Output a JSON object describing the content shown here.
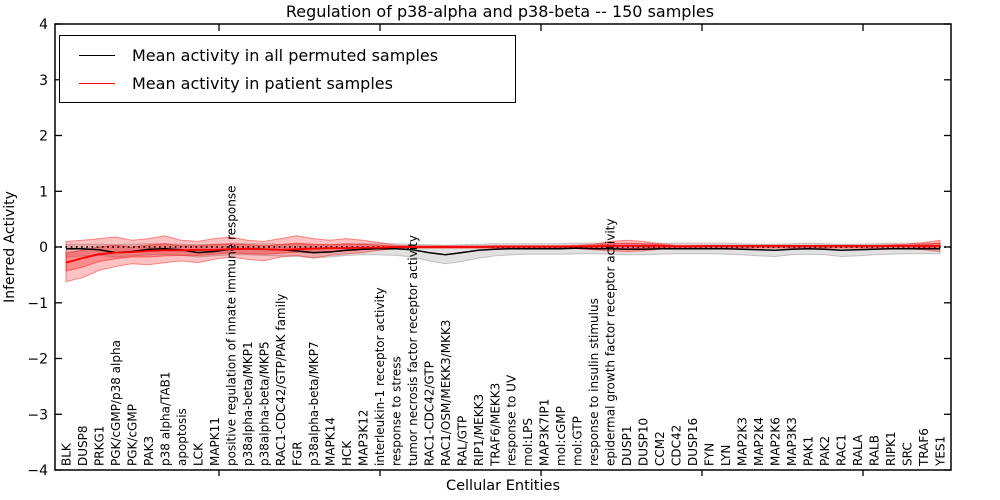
{
  "title": "Regulation of p38-alpha and p38-beta -- 150 samples",
  "axes": {
    "xlabel": "Cellular Entities",
    "ylabel": "Inferred Activity"
  },
  "legend": {
    "items": [
      {
        "label": "Mean activity in all permuted samples",
        "color": "#000000"
      },
      {
        "label": "Mean activity in patient samples",
        "color": "#ff0000"
      }
    ]
  },
  "chart_data": {
    "type": "line",
    "title": "Regulation of p38-alpha and p38-beta -- 150 samples",
    "xlabel": "Cellular Entities",
    "ylabel": "Inferred Activity",
    "ylim": [
      -4,
      4
    ],
    "yticks": [
      4,
      3,
      2,
      1,
      0,
      -1,
      -2,
      -3,
      -4
    ],
    "grid": false,
    "legend_position": "upper left",
    "zero_reference_line": 0,
    "categories": [
      "BLK",
      "DUSP8",
      "PRKG1",
      "PGK/cGMP/p38 alpha",
      "PGK/cGMP",
      "PAK3",
      "p38 alpha/TAB1",
      "apoptosis",
      "LCK",
      "MAPK11",
      "positive regulation of innate immune response",
      "p38alpha-beta/MKP1",
      "p38alpha-beta/MKP5",
      "RAC1-CDC42/GTP/PAK family",
      "FGR",
      "p38alpha-beta/MKP7",
      "MAPK14",
      "HCK",
      "MAP3K12",
      "interleukin-1 receptor activity",
      "response to stress",
      "tumor necrosis factor receptor activity",
      "RAC1-CDC42/GTP",
      "RAC1/OSM/MEKK3/MKK3",
      "RAL/GTP",
      "RIP1/MEKK3",
      "TRAF6/MEKK3",
      "response to UV",
      "mol:LPS",
      "MAP3K7IP1",
      "mol:cGMP",
      "mol:GTP",
      "response to insulin stimulus",
      "epidermal growth factor receptor activity",
      "DUSP1",
      "DUSP10",
      "CCM2",
      "CDC42",
      "DUSP16",
      "FYN",
      "LYN",
      "MAP2K3",
      "MAP2K4",
      "MAP2K6",
      "MAP3K3",
      "PAK1",
      "PAK2",
      "RAC1",
      "RALA",
      "RALB",
      "RIPK1",
      "SRC",
      "TRAF6",
      "YES1"
    ],
    "series": [
      {
        "name": "Mean activity in all permuted samples",
        "color": "#000000",
        "values": [
          -0.03,
          -0.03,
          -0.05,
          -0.1,
          -0.08,
          -0.04,
          -0.03,
          -0.05,
          -0.1,
          -0.08,
          -0.04,
          -0.03,
          -0.04,
          -0.05,
          -0.07,
          -0.1,
          -0.09,
          -0.06,
          -0.04,
          -0.03,
          -0.03,
          -0.05,
          -0.1,
          -0.14,
          -0.1,
          -0.06,
          -0.04,
          -0.03,
          -0.03,
          -0.03,
          -0.03,
          -0.02,
          -0.03,
          -0.03,
          -0.04,
          -0.04,
          -0.03,
          -0.03,
          -0.03,
          -0.03,
          -0.03,
          -0.04,
          -0.05,
          -0.06,
          -0.04,
          -0.03,
          -0.04,
          -0.06,
          -0.05,
          -0.04,
          -0.03,
          -0.03,
          -0.03,
          -0.03
        ]
      },
      {
        "name": "Mean activity in patient samples",
        "color": "#ff0000",
        "values": [
          -0.28,
          -0.2,
          -0.13,
          -0.1,
          -0.09,
          -0.07,
          -0.06,
          -0.06,
          -0.05,
          -0.05,
          -0.04,
          -0.03,
          -0.04,
          -0.05,
          -0.04,
          -0.03,
          -0.02,
          -0.02,
          -0.01,
          -0.01,
          0,
          0,
          0,
          0,
          0,
          0,
          0.01,
          0.01,
          0.01,
          0.01,
          0.01,
          0.01,
          0.01,
          0.02,
          0.02,
          0.02,
          0.02,
          0.01,
          0.01,
          0.02,
          0.02,
          0.02,
          0.02,
          0.02,
          0.02,
          0.02,
          0.02,
          0.02,
          0.02,
          0.02,
          0.02,
          0.02,
          0.02,
          0.02
        ]
      }
    ],
    "bands": [
      {
        "name": "permuted-samples-range",
        "color": "#787878",
        "opacity": 0.22,
        "upper": [
          0.05,
          0.05,
          0.05,
          0.04,
          0.05,
          0.06,
          0.06,
          0.05,
          0.04,
          0.05,
          0.06,
          0.06,
          0.06,
          0.05,
          0.05,
          0.04,
          0.04,
          0.05,
          0.06,
          0.06,
          0.06,
          0.05,
          0.04,
          0.03,
          0.04,
          0.05,
          0.06,
          0.06,
          0.06,
          0.06,
          0.06,
          0.07,
          0.07,
          0.06,
          0.06,
          0.06,
          0.07,
          0.07,
          0.07,
          0.07,
          0.07,
          0.06,
          0.05,
          0.05,
          0.06,
          0.07,
          0.06,
          0.05,
          0.05,
          0.06,
          0.07,
          0.07,
          0.07,
          0.07
        ],
        "lower": [
          -0.18,
          -0.16,
          -0.15,
          -0.18,
          -0.16,
          -0.14,
          -0.13,
          -0.15,
          -0.18,
          -0.16,
          -0.14,
          -0.14,
          -0.15,
          -0.16,
          -0.17,
          -0.19,
          -0.18,
          -0.15,
          -0.14,
          -0.14,
          -0.15,
          -0.18,
          -0.25,
          -0.3,
          -0.26,
          -0.2,
          -0.16,
          -0.14,
          -0.13,
          -0.13,
          -0.13,
          -0.12,
          -0.12,
          -0.13,
          -0.14,
          -0.14,
          -0.13,
          -0.12,
          -0.12,
          -0.12,
          -0.13,
          -0.14,
          -0.16,
          -0.17,
          -0.14,
          -0.13,
          -0.14,
          -0.17,
          -0.16,
          -0.14,
          -0.13,
          -0.12,
          -0.12,
          -0.12
        ]
      },
      {
        "name": "patient-samples-range-outer",
        "color": "#ff0000",
        "opacity": 0.24,
        "upper": [
          0.1,
          0.12,
          0.15,
          0.18,
          0.12,
          0.15,
          0.2,
          0.12,
          0.1,
          0.15,
          0.18,
          0.12,
          0.1,
          0.15,
          0.2,
          0.15,
          0.12,
          0.15,
          0.12,
          0.08,
          0.03,
          0.02,
          0.02,
          0.02,
          0.02,
          0.02,
          0.02,
          0.02,
          0.02,
          0.02,
          0.02,
          0.03,
          0.05,
          0.1,
          0.12,
          0.1,
          0.06,
          0.03,
          0.03,
          0.03,
          0.03,
          0.03,
          0.03,
          0.03,
          0.03,
          0.03,
          0.03,
          0.03,
          0.03,
          0.03,
          0.04,
          0.05,
          0.08,
          0.12
        ],
        "lower": [
          -0.62,
          -0.55,
          -0.42,
          -0.35,
          -0.3,
          -0.32,
          -0.28,
          -0.25,
          -0.28,
          -0.22,
          -0.18,
          -0.22,
          -0.25,
          -0.18,
          -0.15,
          -0.2,
          -0.15,
          -0.12,
          -0.1,
          -0.06,
          -0.03,
          -0.02,
          -0.02,
          -0.02,
          -0.02,
          -0.02,
          -0.02,
          -0.02,
          -0.02,
          -0.02,
          -0.02,
          -0.03,
          -0.05,
          -0.07,
          -0.08,
          -0.07,
          -0.04,
          -0.02,
          -0.02,
          -0.02,
          -0.02,
          -0.02,
          -0.02,
          -0.02,
          -0.02,
          -0.02,
          -0.02,
          -0.02,
          -0.02,
          -0.02,
          -0.03,
          -0.03,
          -0.05,
          -0.08
        ]
      },
      {
        "name": "patient-samples-range-inner",
        "color": "#ff0000",
        "opacity": 0.28,
        "upper": [
          -0.11,
          -0.06,
          0.0,
          0.03,
          0.0,
          0.03,
          0.06,
          0.02,
          0.02,
          0.04,
          0.06,
          0.04,
          0.02,
          0.04,
          0.07,
          0.05,
          0.04,
          0.06,
          0.05,
          0.03,
          0.01,
          0.01,
          0.01,
          0.01,
          0.01,
          0.01,
          0.01,
          0.01,
          0.01,
          0.01,
          0.01,
          0.02,
          0.03,
          0.06,
          0.07,
          0.06,
          0.04,
          0.02,
          0.02,
          0.02,
          0.02,
          0.02,
          0.02,
          0.02,
          0.02,
          0.02,
          0.02,
          0.02,
          0.02,
          0.02,
          0.03,
          0.03,
          0.05,
          0.07
        ],
        "lower": [
          -0.43,
          -0.36,
          -0.26,
          -0.21,
          -0.18,
          -0.18,
          -0.16,
          -0.15,
          -0.15,
          -0.13,
          -0.1,
          -0.12,
          -0.13,
          -0.11,
          -0.09,
          -0.11,
          -0.08,
          -0.07,
          -0.05,
          -0.03,
          -0.01,
          -0.01,
          -0.01,
          -0.01,
          -0.01,
          -0.01,
          -0.01,
          -0.01,
          -0.01,
          -0.01,
          -0.01,
          -0.01,
          -0.02,
          -0.02,
          -0.03,
          -0.02,
          -0.01,
          0.0,
          0.0,
          0.0,
          0.0,
          0.0,
          0.0,
          0.0,
          0.0,
          0.0,
          0.0,
          0.0,
          0.0,
          0.0,
          0.0,
          0.0,
          -0.01,
          -0.02
        ]
      }
    ]
  }
}
